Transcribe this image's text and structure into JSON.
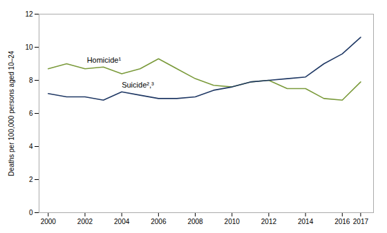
{
  "chart_data": {
    "type": "line",
    "ylabel": "Deaths per 100,000 persons aged 10–24",
    "x": [
      2000,
      2001,
      2002,
      2003,
      2004,
      2005,
      2006,
      2007,
      2008,
      2009,
      2010,
      2011,
      2012,
      2013,
      2014,
      2015,
      2016,
      2017
    ],
    "series": [
      {
        "name": "Homicide¹",
        "color": "#7a9a3a",
        "values": [
          8.7,
          9.0,
          8.7,
          8.8,
          8.4,
          8.7,
          9.3,
          8.7,
          8.1,
          7.7,
          7.6,
          7.9,
          8.0,
          7.5,
          7.5,
          6.9,
          6.8,
          7.9
        ]
      },
      {
        "name": "Suicide²,³",
        "color": "#1f3864",
        "values": [
          7.2,
          7.0,
          7.0,
          6.8,
          7.3,
          7.1,
          6.9,
          6.9,
          7.0,
          7.4,
          7.6,
          7.9,
          8.0,
          8.1,
          8.2,
          9.0,
          9.6,
          10.6
        ]
      }
    ],
    "annotations": [
      {
        "text": "Homicide¹",
        "x": 2002.1,
        "y": 9.05
      },
      {
        "text": "Suicide²,³",
        "x": 2004.0,
        "y": 7.55
      }
    ],
    "xlim": [
      1999.5,
      2017.7
    ],
    "ylim": [
      0,
      12
    ],
    "xticks": [
      2000,
      2002,
      2004,
      2006,
      2008,
      2010,
      2012,
      2014,
      2016,
      2017
    ],
    "yticks": [
      0,
      2,
      4,
      6,
      8,
      10,
      12
    ],
    "grid": false
  }
}
